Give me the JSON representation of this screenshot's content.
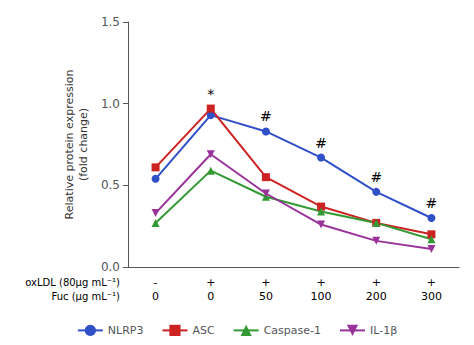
{
  "chart_data": {
    "type": "line",
    "ylabel": "Relative protein expression\n(fold change)",
    "categories": [
      "0",
      "0",
      "50",
      "100",
      "200",
      "300"
    ],
    "xlabel": "Fuc (μg mL⁻¹)",
    "oxLDL_row": {
      "label": "oxLDL (80μg mL⁻¹)",
      "values": [
        "-",
        "+",
        "+",
        "+",
        "+",
        "+"
      ]
    },
    "series": [
      {
        "name": "NLRP3",
        "color": "#3050c8",
        "marker": "circle",
        "values": [
          0.54,
          0.93,
          0.83,
          0.67,
          0.46,
          0.3
        ]
      },
      {
        "name": "ASC",
        "color": "#cc2222",
        "marker": "square",
        "values": [
          0.61,
          0.97,
          0.55,
          0.37,
          0.27,
          0.2
        ]
      },
      {
        "name": "Caspase-1",
        "color": "#339933",
        "marker": "triangle",
        "values": [
          0.27,
          0.59,
          0.43,
          0.34,
          0.27,
          0.17
        ]
      },
      {
        "name": "IL-1β",
        "color": "#993399",
        "marker": "triangle_down",
        "values": [
          0.33,
          0.69,
          0.45,
          0.26,
          0.16,
          0.11
        ]
      }
    ],
    "annotations": [
      {
        "text": "*",
        "series": "ASC",
        "x": 1
      },
      {
        "text": "#",
        "series": "NLRP3",
        "x": 2
      },
      {
        "text": "#",
        "series": "NLRP3",
        "x": 3
      },
      {
        "text": "#",
        "series": "NLRP3",
        "x": 4
      },
      {
        "text": "#",
        "series": "NLRP3",
        "x": 5
      }
    ],
    "ylim": [
      0.0,
      1.5
    ],
    "yticks": [
      {
        "value": 0.0,
        "label": "0.0"
      },
      {
        "value": 0.5,
        "label": "0.5"
      },
      {
        "value": 1.0,
        "label": "1.0"
      },
      {
        "value": 1.5,
        "label": "1.5"
      }
    ],
    "grid": false,
    "legend": "bottom"
  }
}
